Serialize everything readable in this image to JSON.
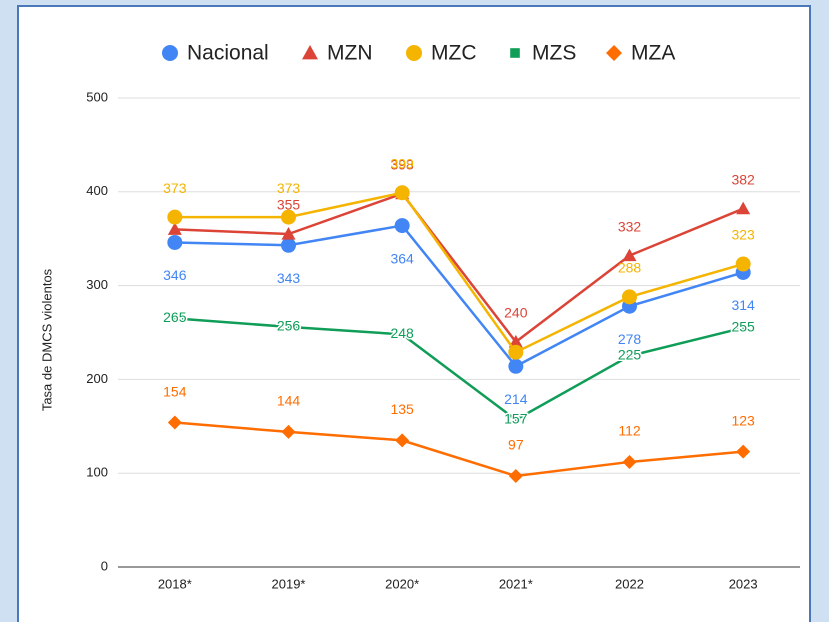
{
  "chart_data": {
    "type": "line",
    "categories": [
      "2018*",
      "2019*",
      "2020*",
      "2021*",
      "2022",
      "2023"
    ],
    "y_label": "Tasa de DMCS violentos",
    "ylim": [
      0,
      500
    ],
    "yticks": [
      0,
      100,
      200,
      300,
      400,
      500
    ],
    "grid": true,
    "legend": "top",
    "series": [
      {
        "name": "Nacional",
        "color": "#4285f4",
        "marker": "circle",
        "values": [
          346,
          343,
          364,
          214,
          278,
          314
        ]
      },
      {
        "name": "MZN",
        "color": "#db4437",
        "marker": "triangle",
        "values": [
          360,
          355,
          398,
          240,
          332,
          382
        ],
        "value_labels": [
          null,
          "355",
          "398",
          "240",
          "332",
          "382"
        ]
      },
      {
        "name": "MZC",
        "color": "#f4b400",
        "marker": "circle",
        "values": [
          373,
          373,
          399,
          229,
          288,
          323
        ],
        "value_labels": [
          "373",
          "373",
          "399",
          null,
          "288",
          "323"
        ]
      },
      {
        "name": "MZS",
        "color": "#0f9d58",
        "marker": "square",
        "values": [
          265,
          256,
          248,
          157,
          225,
          255
        ]
      },
      {
        "name": "MZA",
        "color": "#ff6d01",
        "marker": "diamond",
        "values": [
          154,
          144,
          135,
          97,
          112,
          123
        ]
      }
    ]
  }
}
